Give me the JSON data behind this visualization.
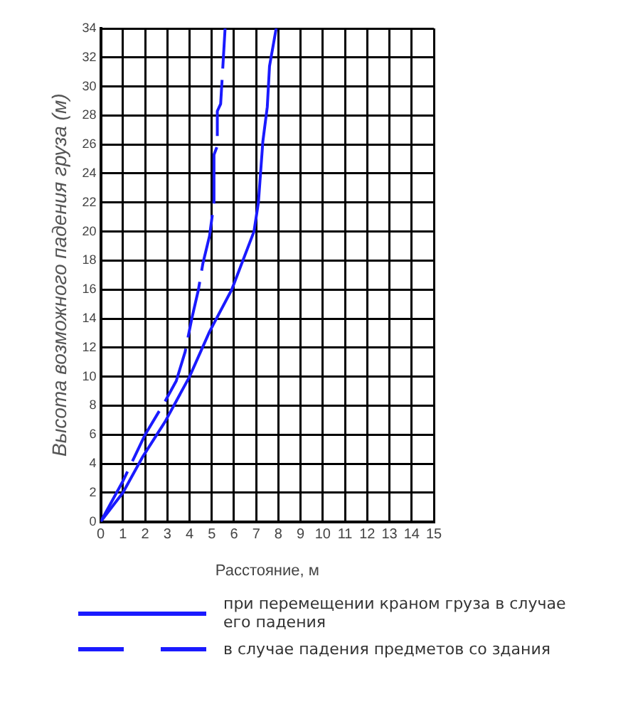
{
  "chart_data": {
    "type": "line",
    "xlabel": "Расстояние, м",
    "ylabel": "Высота возможного падения груза (м)",
    "xlim": [
      0,
      15
    ],
    "xticks": [
      0,
      1,
      2,
      3,
      4,
      5,
      6,
      7,
      8,
      9,
      10,
      11,
      12,
      13,
      14,
      15
    ],
    "ylim": [
      0,
      34
    ],
    "yticks": [
      0,
      2,
      4,
      6,
      8,
      10,
      12,
      14,
      16,
      18,
      20,
      22,
      24,
      26,
      28,
      30,
      32,
      34
    ],
    "grid": true,
    "legend": "bottom",
    "marker": "none",
    "series": [
      {
        "name": "при перемещении краном груза в случае его падения",
        "color": "#1a1aff",
        "line_style": "solid",
        "x": [
          0,
          1,
          1.9,
          2.9,
          4,
          4.9,
          5.9,
          6.9,
          7.1,
          7.3,
          7.5,
          7.6,
          7.9
        ],
        "values": [
          0,
          2,
          4.5,
          6.9,
          10,
          13.1,
          16,
          20,
          22,
          26.2,
          28.6,
          31.4,
          34
        ]
      },
      {
        "name": "в случае падения предметов со здания",
        "color": "#1a1aff",
        "line_style": "dashed",
        "x": [
          0,
          1,
          2,
          2.9,
          3.4,
          3.8,
          4.1,
          4.4,
          4.6,
          4.9,
          5.1,
          5.1,
          5.25,
          5.25,
          5.4,
          5.6
        ],
        "values": [
          0,
          2.8,
          6,
          8.3,
          9.7,
          11.7,
          14,
          16,
          17.8,
          19.7,
          22,
          25.3,
          25.9,
          28.3,
          28.8,
          34
        ]
      }
    ]
  }
}
